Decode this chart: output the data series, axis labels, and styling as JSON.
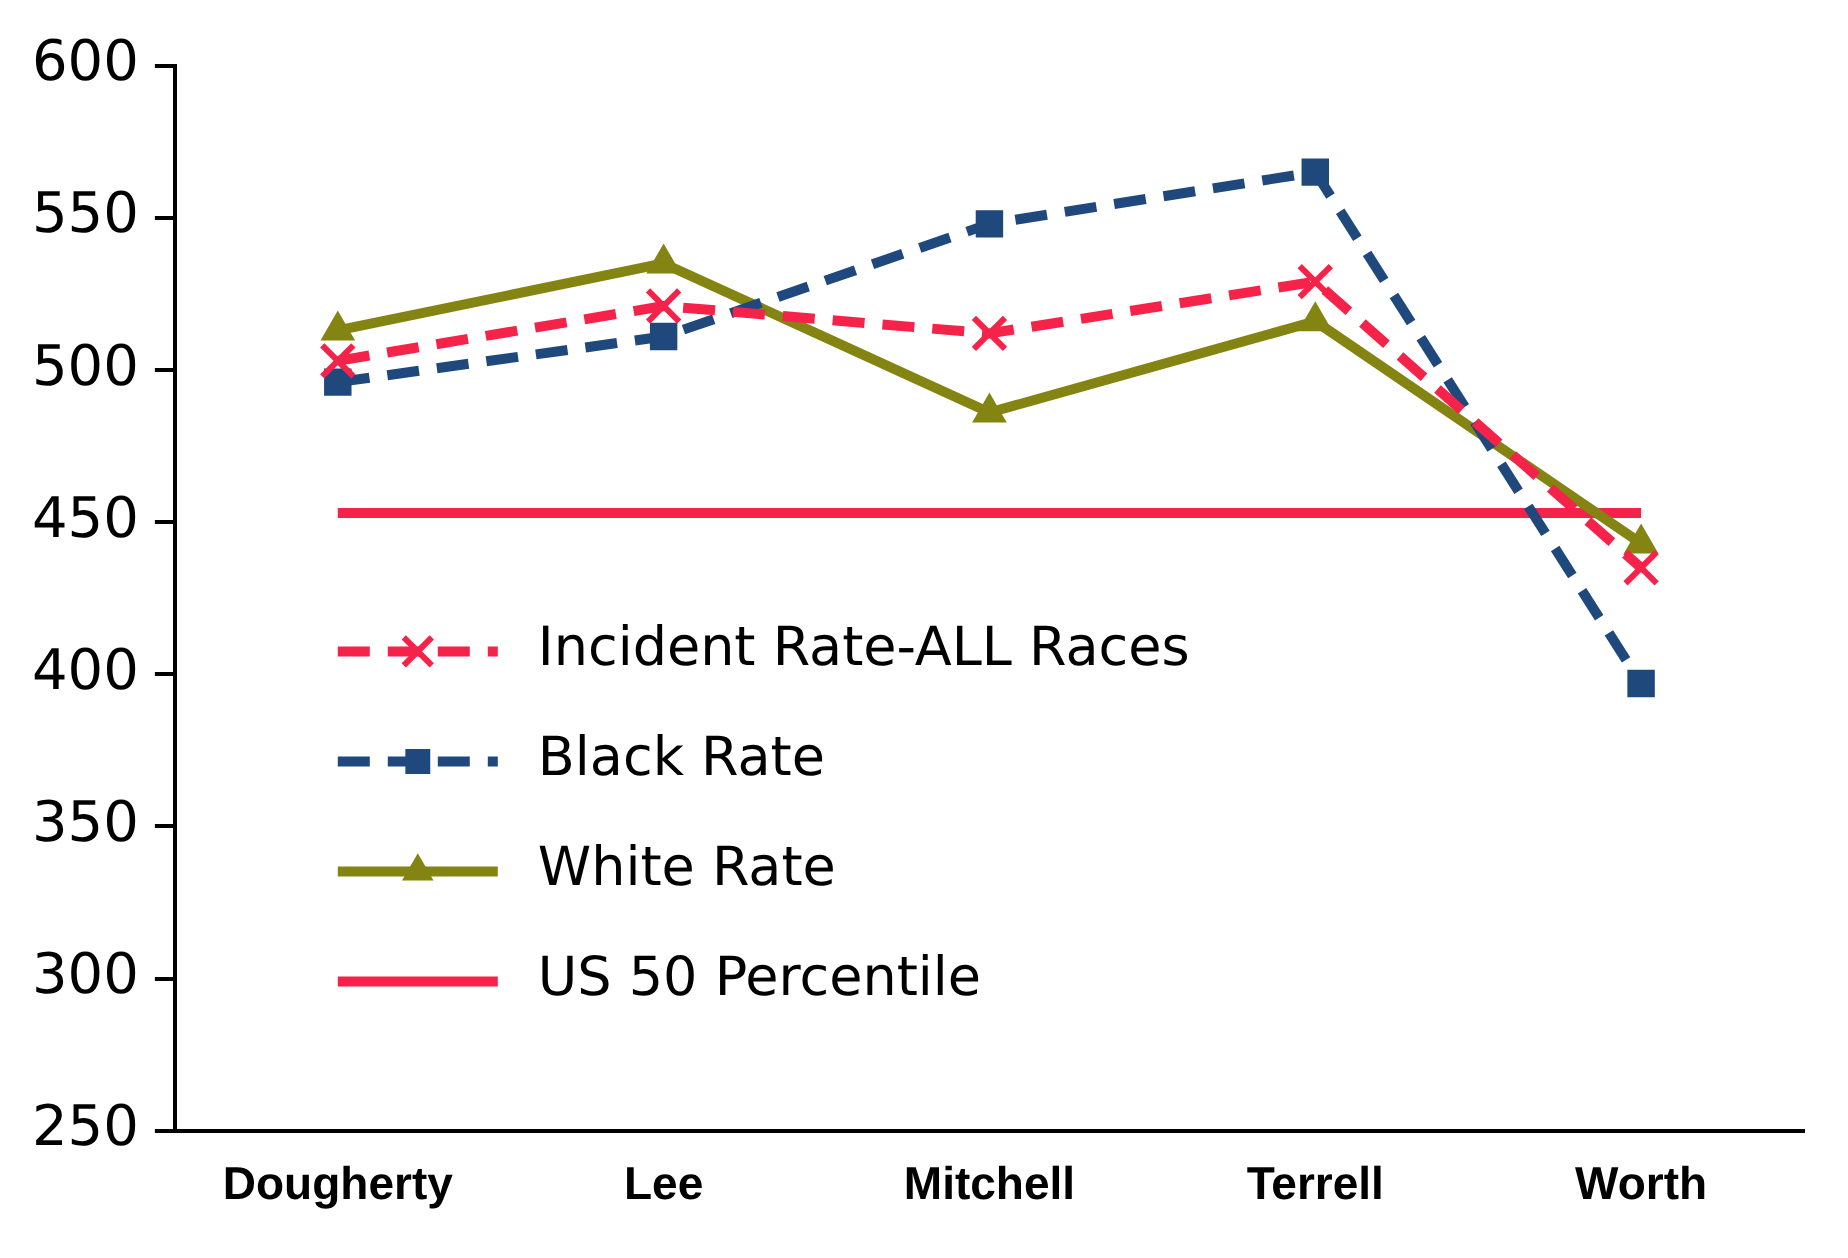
{
  "chart_data": {
    "type": "line",
    "categories": [
      "Dougherty",
      "Lee",
      "Mitchell",
      "Terrell",
      "Worth"
    ],
    "series": [
      {
        "name": "Incident Rate-ALL Races",
        "color": "#f5224a",
        "values": [
          503,
          521,
          512,
          529,
          435
        ],
        "marker": "cross",
        "line_style": "dashed"
      },
      {
        "name": "Black Rate",
        "color": "#1f497d",
        "values": [
          496,
          511,
          548,
          565,
          397
        ],
        "marker": "square",
        "line_style": "dashed"
      },
      {
        "name": "White Rate",
        "color": "#848412",
        "values": [
          513,
          535,
          486,
          516,
          443
        ],
        "marker": "triangle",
        "line_style": "solid"
      }
    ],
    "ref_lines": [
      {
        "axis": "y",
        "value": 453,
        "label": "US 50 Percentile",
        "color": "#f5224a",
        "line_style": "solid"
      }
    ],
    "ylim": [
      250,
      600
    ],
    "yticks": [
      250,
      300,
      350,
      400,
      450,
      500,
      550,
      600
    ],
    "grid": false,
    "legend": "left"
  }
}
